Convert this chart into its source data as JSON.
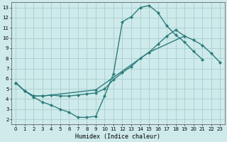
{
  "xlabel": "Humidex (Indice chaleur)",
  "background_color": "#ceeaea",
  "grid_color": "#aacece",
  "line_color": "#2e7d7d",
  "xlim": [
    -0.5,
    23.5
  ],
  "ylim": [
    1.5,
    13.5
  ],
  "xticks": [
    0,
    1,
    2,
    3,
    4,
    5,
    6,
    7,
    8,
    9,
    10,
    11,
    12,
    13,
    14,
    15,
    16,
    17,
    18,
    19,
    20,
    21,
    22,
    23
  ],
  "yticks": [
    2,
    3,
    4,
    5,
    6,
    7,
    8,
    9,
    10,
    11,
    12,
    13
  ],
  "line1_x": [
    0,
    1,
    2,
    3,
    4,
    5,
    6,
    7,
    8,
    9,
    10,
    11,
    12,
    13,
    14,
    15,
    16,
    17,
    18,
    19,
    20,
    21
  ],
  "line1_y": [
    5.6,
    4.8,
    4.2,
    3.7,
    3.4,
    3.0,
    2.7,
    2.2,
    2.2,
    2.3,
    4.3,
    6.5,
    11.6,
    12.1,
    13.0,
    13.2,
    12.5,
    11.2,
    10.3,
    9.6,
    8.7,
    7.9
  ],
  "line2_x": [
    0,
    1,
    2,
    3,
    4,
    5,
    6,
    7,
    8,
    9,
    10,
    11,
    12,
    13,
    14,
    15,
    16,
    17,
    18,
    19
  ],
  "line2_y": [
    5.6,
    4.8,
    4.3,
    4.3,
    4.4,
    4.3,
    4.3,
    4.4,
    4.5,
    4.6,
    5.0,
    5.9,
    6.6,
    7.2,
    8.0,
    8.6,
    9.4,
    10.2,
    10.8,
    10.2
  ],
  "line3_x": [
    0,
    1,
    2,
    3,
    9,
    15,
    19,
    20,
    21,
    22,
    23
  ],
  "line3_y": [
    5.6,
    4.8,
    4.3,
    4.3,
    4.9,
    8.6,
    10.2,
    9.8,
    9.3,
    8.5,
    7.6
  ],
  "marker": "D",
  "marker_size": 2.0,
  "linewidth": 1.0
}
